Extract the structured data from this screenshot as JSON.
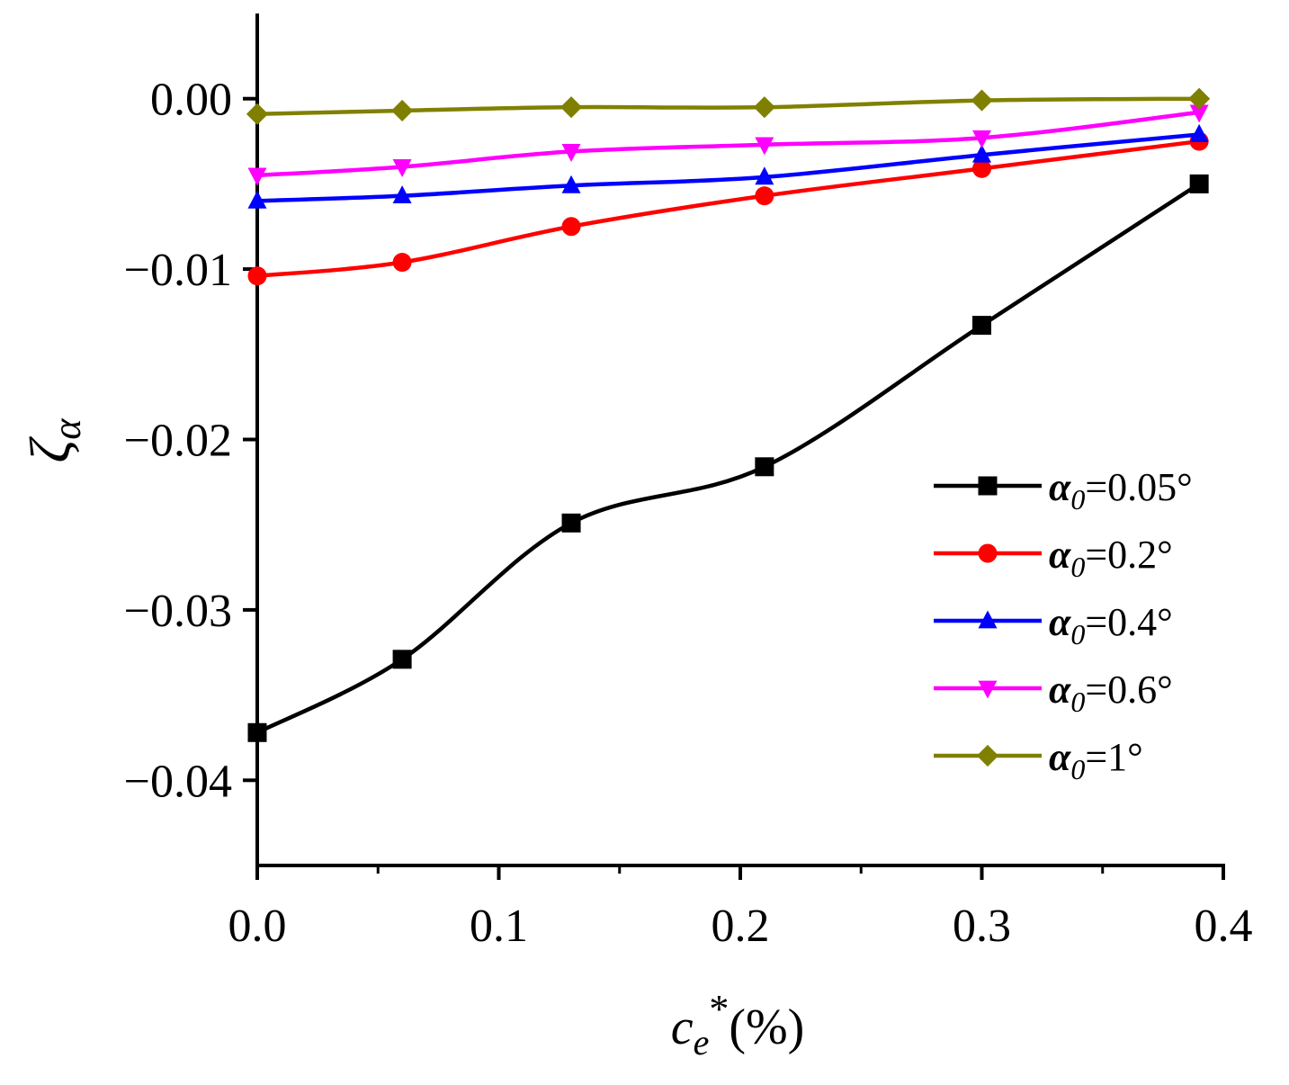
{
  "chart_data": {
    "type": "line",
    "title": "",
    "xlabel": {
      "base": "c",
      "subscript": "e",
      "superscript": "*",
      "suffix": "(%)"
    },
    "ylabel": {
      "base": "ζ",
      "subscript": "α"
    },
    "xlim": [
      0.0,
      0.4
    ],
    "ylim": [
      -0.045,
      0.005
    ],
    "x_ticks": [
      0.0,
      0.1,
      0.2,
      0.3,
      0.4
    ],
    "x_tick_labels": [
      "0.0",
      "0.1",
      "0.2",
      "0.3",
      "0.4"
    ],
    "y_ticks": [
      0.0,
      -0.01,
      -0.02,
      -0.03,
      -0.04
    ],
    "y_tick_labels": [
      "0.00",
      "−0.01",
      "−0.02",
      "−0.03",
      "−0.04"
    ],
    "grid": false,
    "legend_position": "right",
    "legend_symbol": "α",
    "legend_subscript": "0",
    "x": [
      0.0,
      0.06,
      0.13,
      0.21,
      0.3,
      0.39
    ],
    "series": [
      {
        "name": "α0=0.05°",
        "label_value": "=0.05°",
        "color": "#000000",
        "marker": "square",
        "values": [
          -0.0372,
          -0.0329,
          -0.0249,
          -0.0216,
          -0.0133,
          -0.005
        ]
      },
      {
        "name": "α0=0.2°",
        "label_value": "=0.2°",
        "color": "#ff0000",
        "marker": "circle",
        "values": [
          -0.0104,
          -0.0096,
          -0.0075,
          -0.0057,
          -0.0041,
          -0.0025
        ]
      },
      {
        "name": "α0=0.4°",
        "label_value": "=0.4°",
        "color": "#0000ff",
        "marker": "triangle-up",
        "values": [
          -0.006,
          -0.0057,
          -0.0051,
          -0.0046,
          -0.0033,
          -0.0021
        ]
      },
      {
        "name": "α0=0.6°",
        "label_value": "=0.6°",
        "color": "#ff00ff",
        "marker": "triangle-down",
        "values": [
          -0.0045,
          -0.004,
          -0.0031,
          -0.0027,
          -0.0023,
          -0.0008
        ]
      },
      {
        "name": "α0=1°",
        "label_value": "=1°",
        "color": "#808000",
        "marker": "diamond",
        "values": [
          -0.0009,
          -0.0007,
          -0.0005,
          -0.0005,
          -0.0001,
          0.0
        ]
      }
    ]
  }
}
